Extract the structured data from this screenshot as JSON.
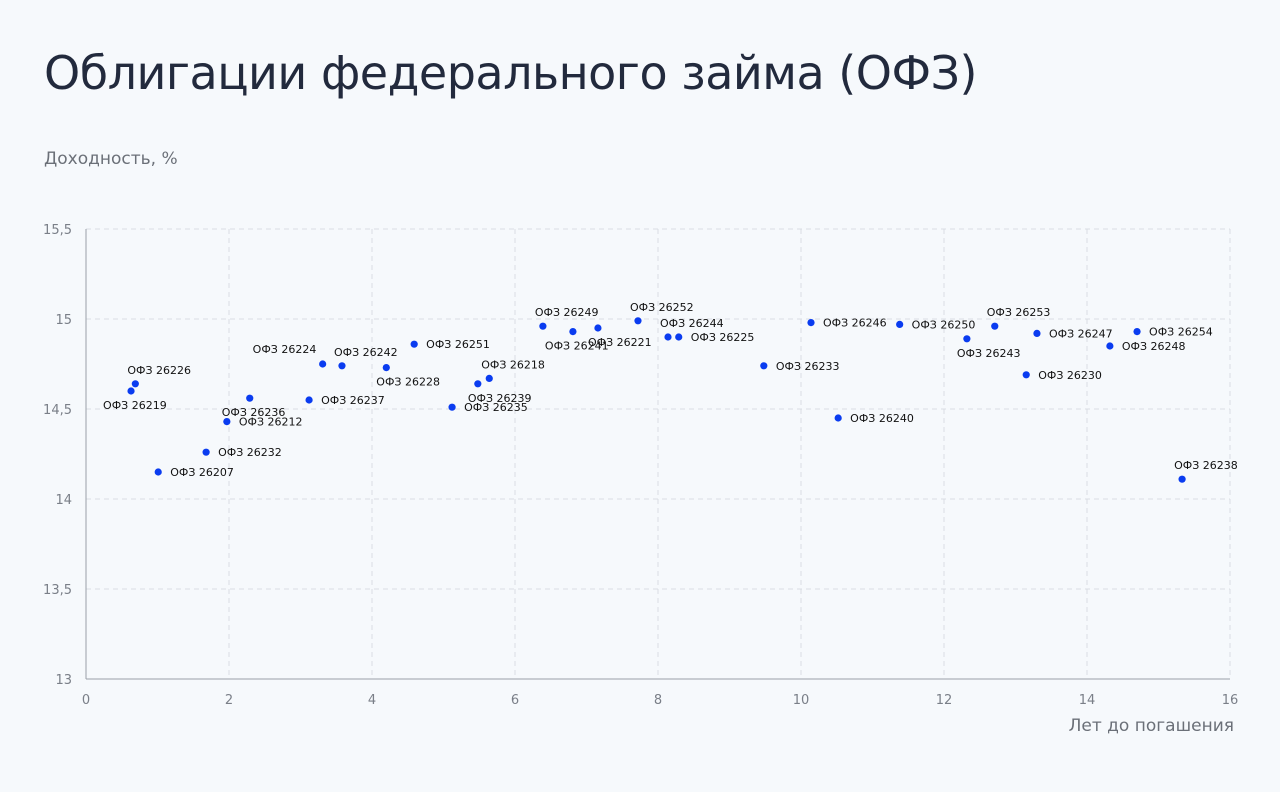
{
  "chart_data": {
    "type": "scatter",
    "title": "Облигации федерального займа (ОФЗ)",
    "ylabel": "Доходность, %",
    "xlabel": "Лет до погашения",
    "xlim": [
      0,
      16
    ],
    "ylim": [
      13,
      15.5
    ],
    "xticks": [
      0,
      2,
      4,
      6,
      8,
      10,
      12,
      14,
      16
    ],
    "xtick_labels": [
      "0",
      "2",
      "4",
      "6",
      "8",
      "10",
      "12",
      "14",
      "16"
    ],
    "yticks": [
      13,
      13.5,
      14,
      14.5,
      15,
      15.5
    ],
    "ytick_labels": [
      "13",
      "13,5",
      "14",
      "14,5",
      "15",
      "15,5"
    ],
    "grid": true,
    "point_color": "#0a3cf0",
    "points": [
      {
        "name": "ОФЗ 26226",
        "x": 0.69,
        "y": 14.64,
        "label_pos": "above"
      },
      {
        "name": "ОФЗ 26219",
        "x": 0.63,
        "y": 14.6,
        "label_pos": "below-left"
      },
      {
        "name": "ОФЗ 26207",
        "x": 1.01,
        "y": 14.15,
        "label_pos": "right"
      },
      {
        "name": "ОФЗ 26232",
        "x": 1.68,
        "y": 14.26,
        "label_pos": "right"
      },
      {
        "name": "ОФЗ 26212",
        "x": 1.97,
        "y": 14.43,
        "label_pos": "right"
      },
      {
        "name": "ОФЗ 26236",
        "x": 2.29,
        "y": 14.56,
        "label_pos": "below-left"
      },
      {
        "name": "ОФЗ 26237",
        "x": 3.12,
        "y": 14.55,
        "label_pos": "right"
      },
      {
        "name": "ОФЗ 26224",
        "x": 3.31,
        "y": 14.75,
        "label_pos": "above-left"
      },
      {
        "name": "ОФЗ 26242",
        "x": 3.58,
        "y": 14.74,
        "label_pos": "above"
      },
      {
        "name": "ОФЗ 26228",
        "x": 4.2,
        "y": 14.73,
        "label_pos": "below"
      },
      {
        "name": "ОФЗ 26251",
        "x": 4.59,
        "y": 14.86,
        "label_pos": "right"
      },
      {
        "name": "ОФЗ 26235",
        "x": 5.12,
        "y": 14.51,
        "label_pos": "right"
      },
      {
        "name": "ОФЗ 26239",
        "x": 5.48,
        "y": 14.64,
        "label_pos": "below"
      },
      {
        "name": "ОФЗ 26218",
        "x": 5.64,
        "y": 14.67,
        "label_pos": "above"
      },
      {
        "name": "ОФЗ 26249",
        "x": 6.39,
        "y": 14.96,
        "label_pos": "above"
      },
      {
        "name": "ОФЗ 26241",
        "x": 6.81,
        "y": 14.93,
        "label_pos": "below-left"
      },
      {
        "name": "ОФЗ 26221",
        "x": 7.16,
        "y": 14.95,
        "label_pos": "below"
      },
      {
        "name": "ОФЗ 26252",
        "x": 7.72,
        "y": 14.99,
        "label_pos": "above"
      },
      {
        "name": "ОФЗ 26244",
        "x": 8.14,
        "y": 14.9,
        "label_pos": "above"
      },
      {
        "name": "ОФЗ 26225",
        "x": 8.29,
        "y": 14.9,
        "label_pos": "right"
      },
      {
        "name": "ОФЗ 26233",
        "x": 9.48,
        "y": 14.74,
        "label_pos": "right"
      },
      {
        "name": "ОФЗ 26246",
        "x": 10.14,
        "y": 14.98,
        "label_pos": "right"
      },
      {
        "name": "ОФЗ 26240",
        "x": 10.52,
        "y": 14.45,
        "label_pos": "right"
      },
      {
        "name": "ОФЗ 26250",
        "x": 11.38,
        "y": 14.97,
        "label_pos": "right"
      },
      {
        "name": "ОФЗ 26243",
        "x": 12.32,
        "y": 14.89,
        "label_pos": "below"
      },
      {
        "name": "ОФЗ 26253",
        "x": 12.71,
        "y": 14.96,
        "label_pos": "above"
      },
      {
        "name": "ОФЗ 26230",
        "x": 13.15,
        "y": 14.69,
        "label_pos": "right"
      },
      {
        "name": "ОФЗ 26247",
        "x": 13.3,
        "y": 14.92,
        "label_pos": "right"
      },
      {
        "name": "ОФЗ 26248",
        "x": 14.32,
        "y": 14.85,
        "label_pos": "right"
      },
      {
        "name": "ОФЗ 26254",
        "x": 14.7,
        "y": 14.93,
        "label_pos": "right"
      },
      {
        "name": "ОФЗ 26238",
        "x": 15.33,
        "y": 14.11,
        "label_pos": "above"
      }
    ]
  }
}
